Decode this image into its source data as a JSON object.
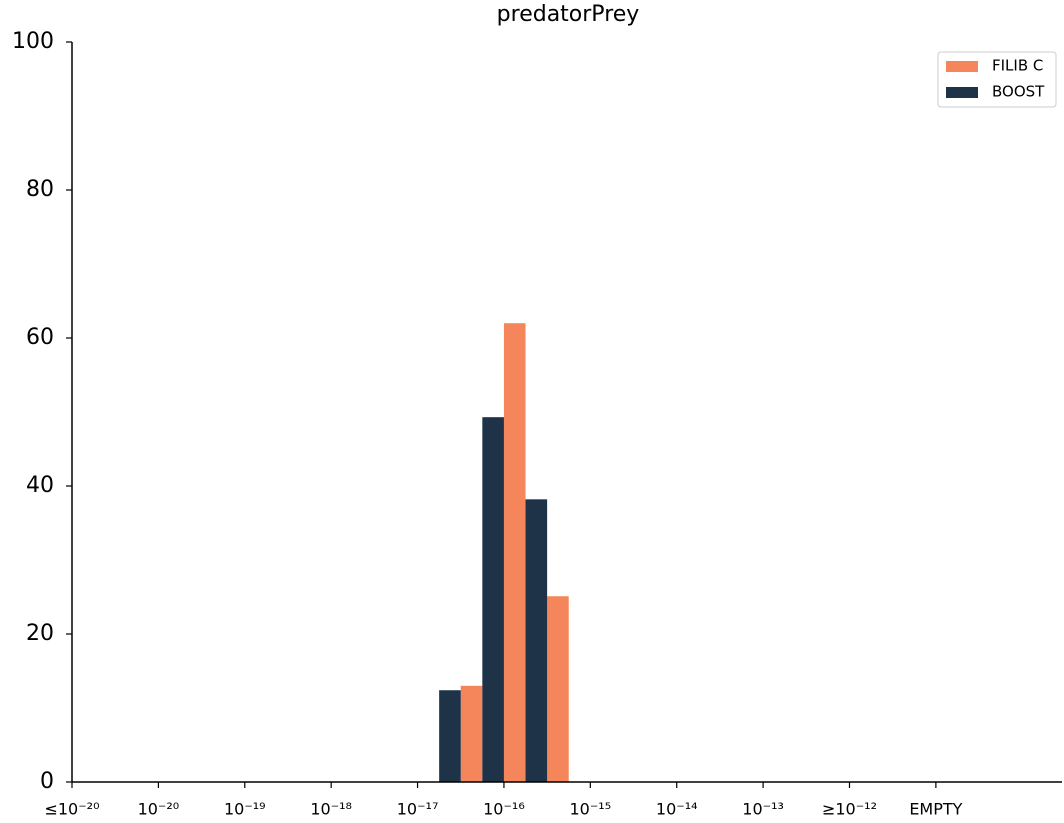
{
  "chart_data": {
    "type": "bar",
    "title": "predatorPrey",
    "xlim": [
      0,
      11.46
    ],
    "xticks": [
      {
        "value": 0,
        "label": "≤10⁻²⁰"
      },
      {
        "value": 1,
        "label": "10⁻²⁰"
      },
      {
        "value": 2,
        "label": "10⁻¹⁹"
      },
      {
        "value": 3,
        "label": "10⁻¹⁸"
      },
      {
        "value": 4,
        "label": "10⁻¹⁷"
      },
      {
        "value": 5,
        "label": "10⁻¹⁶"
      },
      {
        "value": 6,
        "label": "10⁻¹⁵"
      },
      {
        "value": 7,
        "label": "10⁻¹⁴"
      },
      {
        "value": 8,
        "label": "10⁻¹³"
      },
      {
        "value": 9,
        "label": "≥10⁻¹²"
      },
      {
        "value": 10,
        "label": "EMPTY"
      }
    ],
    "ylim": [
      0,
      100
    ],
    "yticks": [
      0,
      20,
      40,
      60,
      80,
      100
    ],
    "bar_width": 0.25,
    "grid": false,
    "legend": "upper right",
    "series": [
      {
        "name": "FILIB C",
        "color": "#f5855a",
        "x": [
          4.625,
          5.125,
          5.625
        ],
        "values": [
          13.0,
          62.0,
          25.1
        ]
      },
      {
        "name": "BOOST",
        "color": "#1e3248",
        "x": [
          4.375,
          4.875,
          5.375
        ],
        "values": [
          12.4,
          49.3,
          38.2
        ]
      }
    ]
  }
}
